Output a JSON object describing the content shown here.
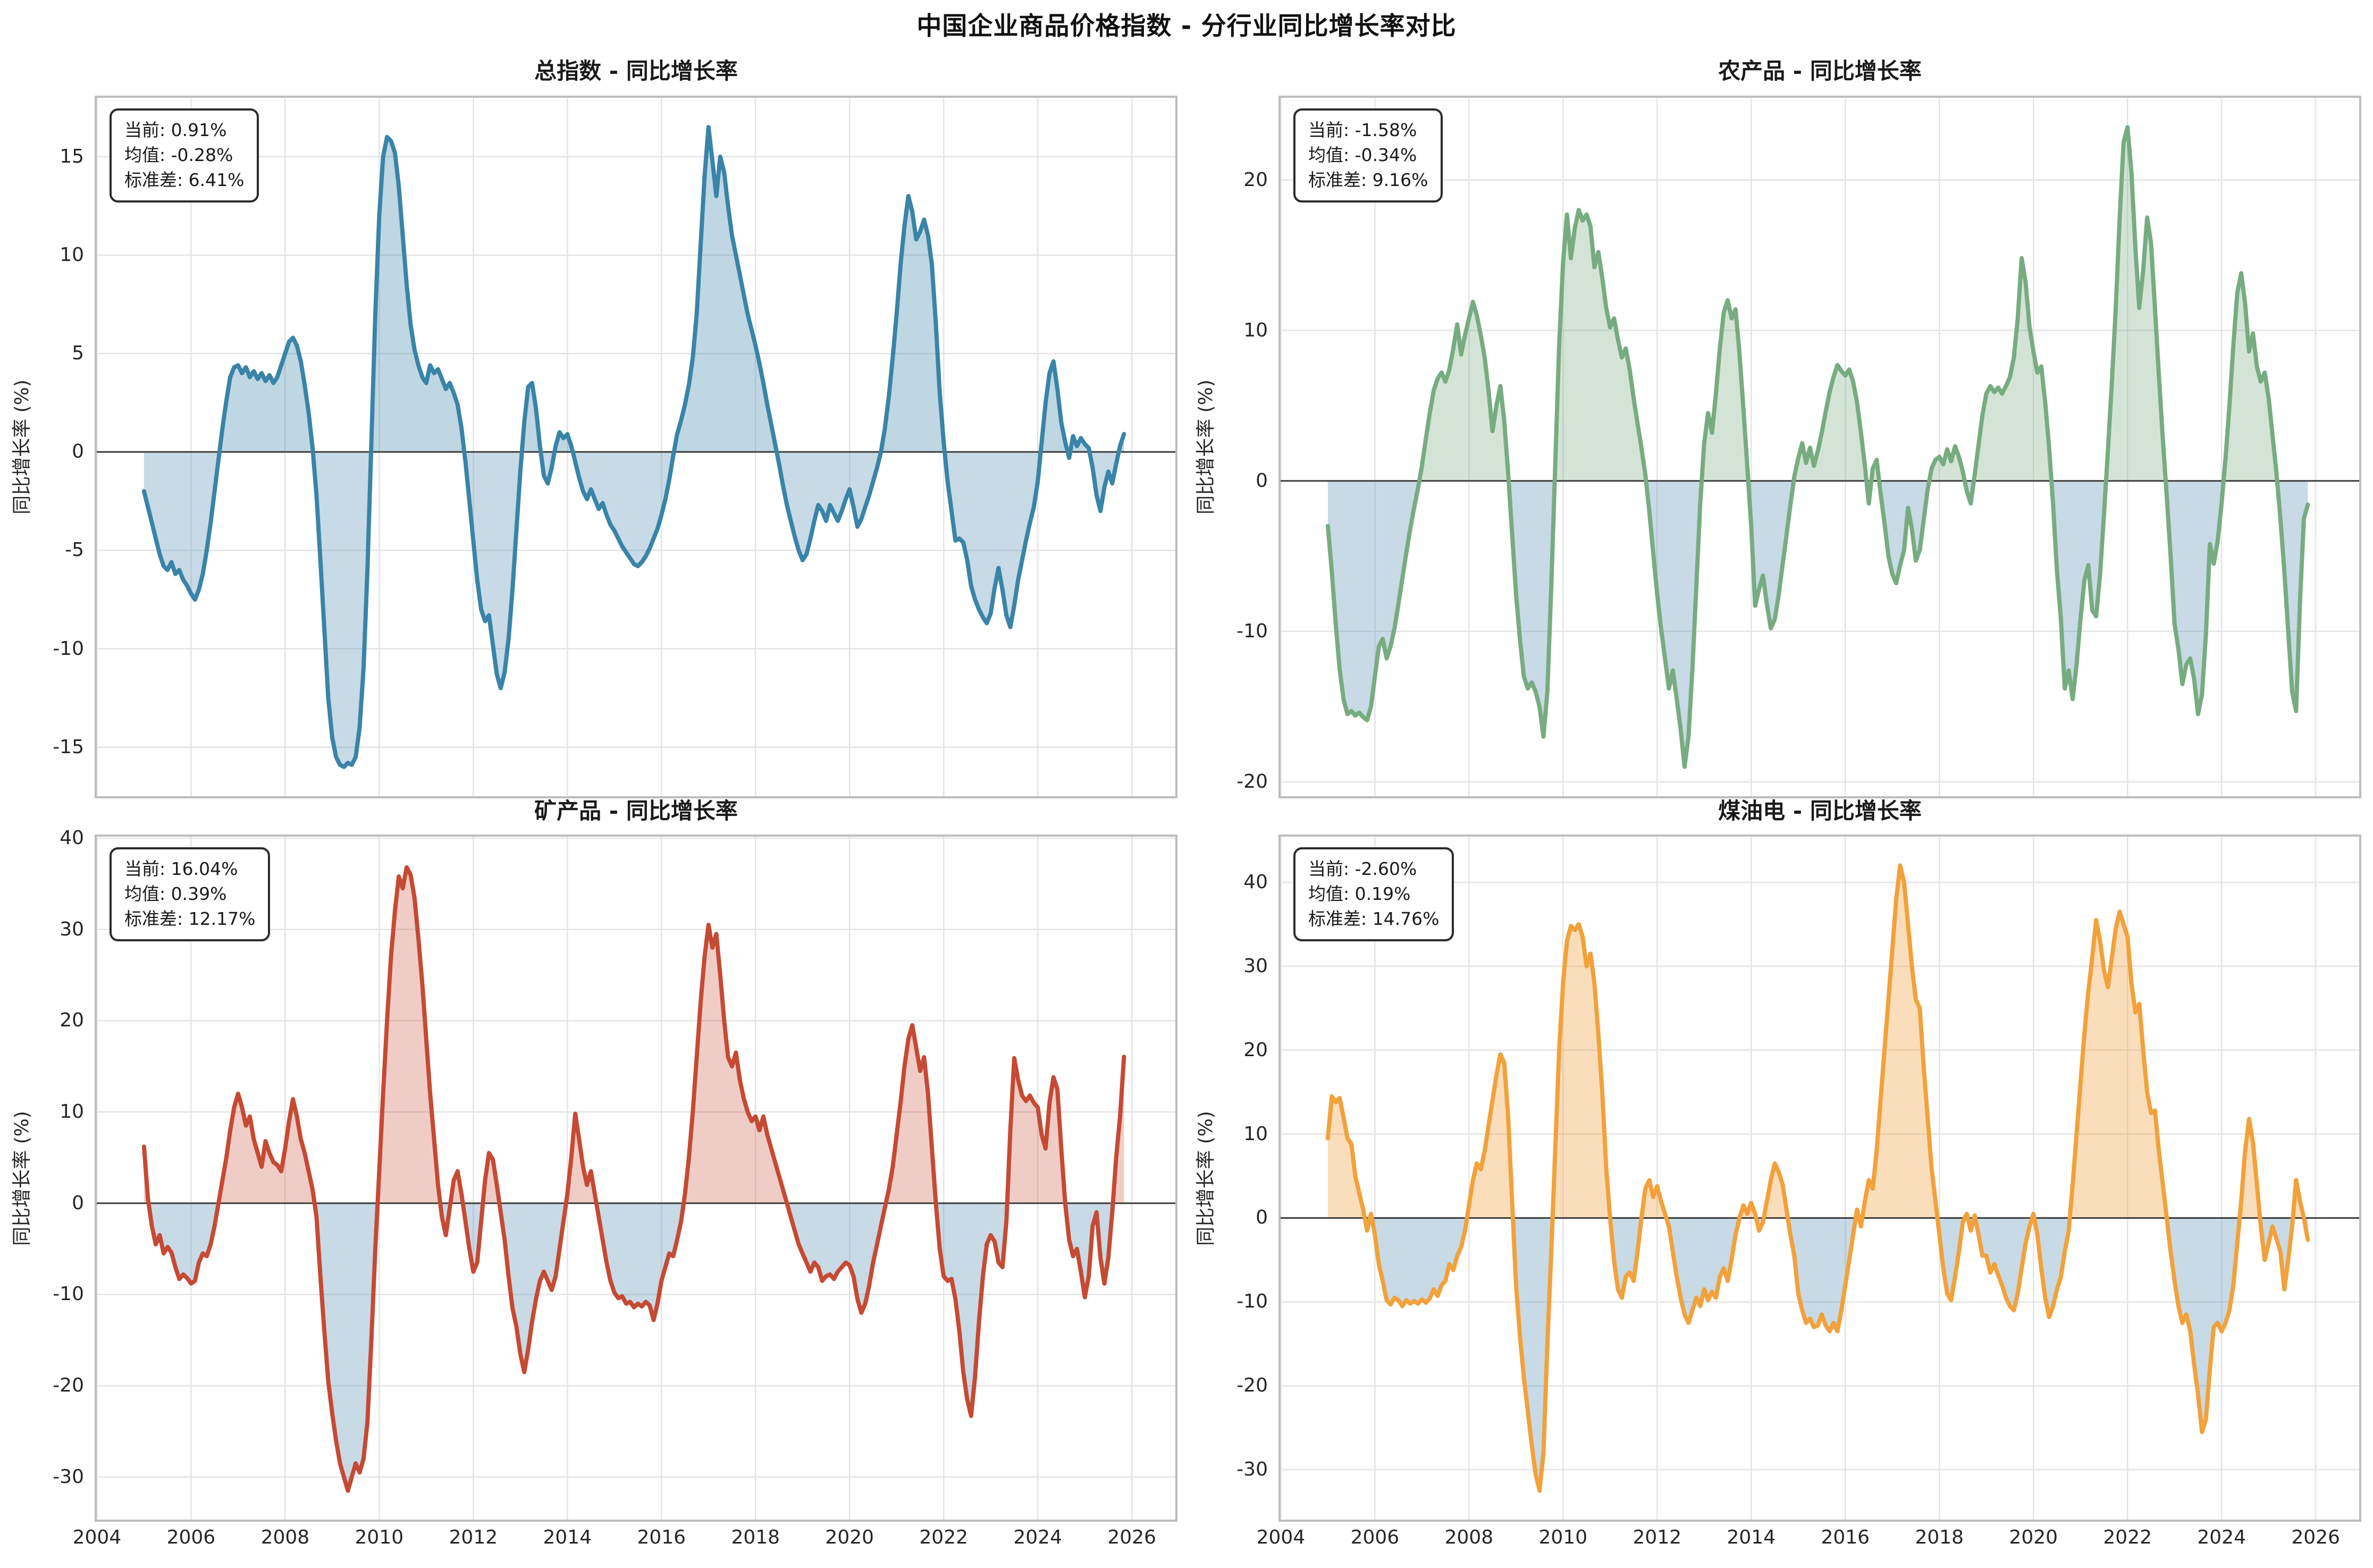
{
  "figure_title": "中国企业商品价格指数 - 分行业同比增长率对比",
  "colors": {
    "negative_fill": "rgba(108,158,188,0.38)",
    "grid": "#e4e4e4",
    "zero_line": "#3d3d3d",
    "plot_border": "#bdbdbd",
    "text": "#262626",
    "title": "#111111"
  },
  "chart_data": [
    {
      "type": "line",
      "title": "总指数 - 同比增长率",
      "ylabel": "同比增长率 (%)",
      "stats": {
        "current": "当前: 0.91%",
        "mean": "均值: -0.28%",
        "std": "标准差: 6.41%"
      },
      "line_color": "#3984a8",
      "fill_color": "rgba(57,132,168,0.32)",
      "x_start_year": 2005.0,
      "x_interval": "monthly",
      "x_range": [
        2003.95,
        2026.97
      ],
      "x_ticks": [
        2004,
        2006,
        2008,
        2010,
        2012,
        2014,
        2016,
        2018,
        2020,
        2022,
        2024,
        2026
      ],
      "y_range": [
        -17.6,
        18.1
      ],
      "y_ticks": [
        15,
        10,
        5,
        0,
        -5,
        -10,
        -15
      ],
      "grid": true,
      "values": [
        -2.0,
        -2.8,
        -3.6,
        -4.4,
        -5.2,
        -5.8,
        -6.0,
        -5.6,
        -6.2,
        -6.0,
        -6.5,
        -6.8,
        -7.2,
        -7.5,
        -7.0,
        -6.2,
        -5.0,
        -3.6,
        -2.0,
        -0.4,
        1.2,
        2.6,
        3.8,
        4.3,
        4.4,
        4.0,
        4.3,
        3.8,
        4.1,
        3.7,
        4.0,
        3.6,
        3.9,
        3.5,
        3.8,
        4.4,
        5.0,
        5.6,
        5.8,
        5.4,
        4.6,
        3.4,
        2.0,
        0.2,
        -2.2,
        -5.5,
        -9.0,
        -12.5,
        -14.5,
        -15.5,
        -15.9,
        -16.0,
        -15.8,
        -15.9,
        -15.5,
        -14.0,
        -11.0,
        -6.0,
        0.5,
        7.0,
        12.0,
        15.0,
        16.0,
        15.8,
        15.2,
        13.5,
        11.0,
        8.5,
        6.5,
        5.2,
        4.4,
        3.8,
        3.5,
        4.4,
        4.0,
        4.2,
        3.7,
        3.2,
        3.5,
        3.0,
        2.4,
        1.2,
        -0.5,
        -2.5,
        -4.5,
        -6.5,
        -8.0,
        -8.6,
        -8.3,
        -9.8,
        -11.3,
        -12.0,
        -11.2,
        -9.5,
        -7.0,
        -4.0,
        -1.0,
        1.5,
        3.3,
        3.5,
        2.2,
        0.3,
        -1.2,
        -1.6,
        -0.8,
        0.3,
        1.0,
        0.7,
        0.9,
        0.3,
        -0.5,
        -1.3,
        -2.0,
        -2.4,
        -1.9,
        -2.4,
        -2.9,
        -2.6,
        -3.2,
        -3.7,
        -4.0,
        -4.4,
        -4.8,
        -5.1,
        -5.4,
        -5.7,
        -5.8,
        -5.6,
        -5.3,
        -4.9,
        -4.4,
        -3.9,
        -3.2,
        -2.4,
        -1.4,
        -0.2,
        0.9,
        1.6,
        2.4,
        3.4,
        4.8,
        7.0,
        10.5,
        14.0,
        16.5,
        14.8,
        13.0,
        15.0,
        14.2,
        12.5,
        11.0,
        10.0,
        9.0,
        8.0,
        7.0,
        6.2,
        5.4,
        4.5,
        3.5,
        2.4,
        1.4,
        0.4,
        -0.6,
        -1.7,
        -2.7,
        -3.5,
        -4.3,
        -5.0,
        -5.5,
        -5.2,
        -4.4,
        -3.5,
        -2.7,
        -3.0,
        -3.5,
        -2.7,
        -3.1,
        -3.5,
        -3.0,
        -2.4,
        -1.9,
        -2.8,
        -3.8,
        -3.4,
        -2.8,
        -2.2,
        -1.5,
        -0.8,
        0.0,
        1.2,
        2.8,
        4.8,
        7.0,
        9.5,
        11.5,
        13.0,
        12.2,
        10.8,
        11.2,
        11.8,
        11.0,
        9.5,
        6.5,
        3.0,
        0.5,
        -1.5,
        -3.0,
        -4.5,
        -4.4,
        -4.6,
        -5.5,
        -6.8,
        -7.5,
        -8.0,
        -8.4,
        -8.7,
        -8.2,
        -6.9,
        -5.9,
        -7.0,
        -8.3,
        -8.9,
        -7.8,
        -6.5,
        -5.5,
        -4.5,
        -3.6,
        -2.8,
        -1.5,
        0.5,
        2.5,
        4.0,
        4.6,
        3.2,
        1.5,
        0.5,
        -0.3,
        0.8,
        0.3,
        0.7,
        0.4,
        0.2,
        -0.8,
        -2.2,
        -3.0,
        -1.8,
        -1.0,
        -1.6,
        -0.6,
        0.3,
        0.91
      ]
    },
    {
      "type": "line",
      "title": "农产品 - 同比增长率",
      "ylabel": "同比增长率 (%)",
      "stats": {
        "current": "当前: -1.58%",
        "mean": "均值: -0.34%",
        "std": "标准差: 9.16%"
      },
      "line_color": "#77ac80",
      "fill_color": "rgba(119,172,128,0.32)",
      "x_start_year": 2005.0,
      "x_interval": "monthly",
      "x_range": [
        2003.95,
        2026.97
      ],
      "x_ticks": [
        2004,
        2006,
        2008,
        2010,
        2012,
        2014,
        2016,
        2018,
        2020,
        2022,
        2024,
        2026
      ],
      "y_range": [
        -21.1,
        25.6
      ],
      "y_ticks": [
        20,
        10,
        0,
        -10,
        -20
      ],
      "grid": true,
      "values": [
        -3.0,
        -6.0,
        -9.5,
        -12.5,
        -14.5,
        -15.5,
        -15.3,
        -15.6,
        -15.4,
        -15.7,
        -15.9,
        -15.0,
        -13.0,
        -11.0,
        -10.5,
        -11.8,
        -11.0,
        -9.8,
        -8.2,
        -6.5,
        -4.8,
        -3.2,
        -1.8,
        -0.5,
        1.0,
        2.8,
        4.5,
        6.0,
        6.8,
        7.2,
        6.6,
        7.4,
        8.8,
        10.4,
        8.4,
        9.7,
        10.8,
        11.9,
        11.0,
        9.7,
        8.2,
        6.0,
        3.3,
        5.0,
        6.3,
        4.0,
        0.5,
        -3.5,
        -7.5,
        -10.5,
        -13.0,
        -13.8,
        -13.4,
        -14.0,
        -15.0,
        -17.0,
        -14.0,
        -7.0,
        1.0,
        9.0,
        14.5,
        17.7,
        14.8,
        16.8,
        18.0,
        17.3,
        17.7,
        16.9,
        14.2,
        15.2,
        13.5,
        11.5,
        10.2,
        10.8,
        9.4,
        8.2,
        8.8,
        7.4,
        5.5,
        3.8,
        2.2,
        0.4,
        -2.0,
        -4.8,
        -7.5,
        -9.8,
        -11.8,
        -13.8,
        -12.6,
        -14.5,
        -16.5,
        -19.0,
        -17.0,
        -12.5,
        -7.0,
        -1.5,
        2.5,
        4.5,
        3.2,
        5.8,
        8.8,
        11.2,
        12.0,
        10.8,
        11.4,
        8.5,
        4.8,
        1.0,
        -3.0,
        -8.3,
        -7.2,
        -6.3,
        -8.2,
        -9.8,
        -9.2,
        -7.6,
        -5.6,
        -3.6,
        -1.6,
        0.3,
        1.5,
        2.5,
        1.2,
        2.2,
        1.0,
        2.0,
        3.2,
        4.6,
        5.9,
        6.9,
        7.7,
        7.3,
        7.0,
        7.4,
        6.6,
        5.2,
        3.2,
        1.0,
        -1.5,
        0.8,
        1.4,
        -0.8,
        -2.8,
        -5.0,
        -6.2,
        -6.8,
        -5.6,
        -4.6,
        -1.8,
        -3.2,
        -5.3,
        -4.6,
        -2.6,
        -0.6,
        0.8,
        1.4,
        1.6,
        1.1,
        2.1,
        1.3,
        2.3,
        1.6,
        0.6,
        -0.7,
        -1.5,
        0.4,
        2.4,
        4.4,
        5.8,
        6.3,
        5.9,
        6.2,
        5.8,
        6.3,
        6.9,
        8.2,
        10.8,
        14.8,
        13.2,
        10.2,
        8.6,
        7.2,
        7.6,
        5.2,
        2.2,
        -1.5,
        -6.0,
        -9.2,
        -13.8,
        -12.6,
        -14.5,
        -12.2,
        -9.2,
        -6.6,
        -5.6,
        -8.6,
        -9.0,
        -6.2,
        -2.2,
        2.0,
        6.5,
        11.5,
        17.5,
        22.5,
        23.5,
        20.5,
        15.5,
        11.5,
        14.0,
        17.5,
        15.8,
        11.5,
        7.0,
        2.8,
        -1.0,
        -5.0,
        -9.5,
        -11.2,
        -13.5,
        -12.2,
        -11.8,
        -13.2,
        -15.5,
        -14.2,
        -10.2,
        -4.2,
        -5.5,
        -4.0,
        -1.5,
        1.5,
        5.0,
        9.0,
        12.5,
        13.8,
        11.8,
        8.6,
        9.8,
        7.6,
        6.6,
        7.2,
        5.5,
        3.0,
        0.5,
        -2.5,
        -6.0,
        -10.0,
        -14.0,
        -15.3,
        -8.0,
        -2.5,
        -1.58
      ]
    },
    {
      "type": "line",
      "title": "矿产品 - 同比增长率",
      "ylabel": "同比增长率 (%)",
      "stats": {
        "current": "当前: 16.04%",
        "mean": "均值: 0.39%",
        "std": "标准差: 12.17%"
      },
      "line_color": "#c64a33",
      "fill_color": "rgba(198,74,51,0.28)",
      "x_start_year": 2005.0,
      "x_interval": "monthly",
      "x_range": [
        2003.95,
        2026.97
      ],
      "x_ticks": [
        2004,
        2006,
        2008,
        2010,
        2012,
        2014,
        2016,
        2018,
        2020,
        2022,
        2024,
        2026
      ],
      "y_range": [
        -34.9,
        40.4
      ],
      "y_ticks": [
        40,
        30,
        20,
        10,
        0,
        -10,
        -20,
        -30
      ],
      "grid": true,
      "values": [
        6.2,
        0.5,
        -2.5,
        -4.5,
        -3.5,
        -5.5,
        -4.8,
        -5.4,
        -7.0,
        -8.3,
        -7.8,
        -8.2,
        -8.8,
        -8.5,
        -6.5,
        -5.5,
        -5.8,
        -4.5,
        -2.5,
        0.0,
        2.5,
        5.0,
        8.0,
        10.5,
        12.0,
        10.5,
        8.5,
        9.5,
        7.0,
        5.5,
        4.0,
        6.8,
        5.5,
        4.5,
        4.2,
        3.5,
        6.0,
        9.0,
        11.4,
        9.5,
        7.0,
        5.5,
        3.5,
        1.5,
        -1.5,
        -8.0,
        -14.0,
        -19.5,
        -23.0,
        -26.0,
        -28.5,
        -30.0,
        -31.5,
        -30.0,
        -28.5,
        -29.5,
        -28.0,
        -24.0,
        -15.0,
        -5.0,
        3.5,
        12.0,
        20.0,
        27.0,
        32.0,
        35.8,
        34.5,
        36.8,
        36.0,
        33.5,
        29.0,
        24.0,
        18.0,
        12.0,
        7.0,
        2.0,
        -1.5,
        -3.5,
        -0.5,
        2.5,
        3.5,
        1.0,
        -2.0,
        -5.0,
        -7.5,
        -6.5,
        -2.0,
        2.5,
        5.5,
        4.8,
        2.0,
        -1.0,
        -4.0,
        -8.0,
        -11.5,
        -13.5,
        -16.5,
        -18.5,
        -16.0,
        -13.0,
        -10.5,
        -8.5,
        -7.5,
        -8.5,
        -9.5,
        -8.0,
        -5.0,
        -2.0,
        1.0,
        5.0,
        9.8,
        7.0,
        4.0,
        2.0,
        3.5,
        1.0,
        -1.5,
        -4.0,
        -6.5,
        -8.5,
        -9.8,
        -10.4,
        -10.2,
        -11.0,
        -10.8,
        -11.4,
        -11.0,
        -11.3,
        -10.8,
        -11.2,
        -12.8,
        -11.0,
        -8.5,
        -7.0,
        -5.5,
        -5.8,
        -4.0,
        -2.0,
        1.0,
        5.0,
        10.0,
        16.0,
        22.0,
        27.0,
        30.5,
        28.0,
        29.5,
        25.0,
        20.0,
        16.0,
        15.0,
        16.5,
        13.5,
        11.5,
        10.0,
        9.0,
        9.5,
        8.0,
        9.5,
        7.5,
        6.0,
        4.5,
        3.0,
        1.5,
        0.0,
        -1.5,
        -3.0,
        -4.5,
        -5.5,
        -6.5,
        -7.5,
        -6.5,
        -7.0,
        -8.5,
        -8.0,
        -7.8,
        -8.3,
        -7.5,
        -7.0,
        -6.5,
        -6.8,
        -8.0,
        -10.5,
        -12.0,
        -11.0,
        -9.0,
        -6.5,
        -4.5,
        -2.5,
        -0.5,
        1.5,
        4.0,
        7.5,
        11.0,
        15.0,
        18.0,
        19.5,
        17.0,
        14.5,
        16.0,
        12.0,
        6.0,
        0.0,
        -5.0,
        -8.0,
        -8.5,
        -8.3,
        -10.5,
        -14.0,
        -18.5,
        -21.5,
        -23.3,
        -19.0,
        -13.0,
        -8.0,
        -4.5,
        -3.5,
        -4.2,
        -6.5,
        -7.0,
        -2.0,
        8.0,
        15.9,
        13.5,
        11.8,
        11.2,
        11.8,
        11.0,
        10.5,
        7.5,
        6.0,
        11.0,
        13.8,
        12.5,
        6.0,
        0.0,
        -4.0,
        -5.8,
        -5.0,
        -7.5,
        -10.3,
        -8.0,
        -2.5,
        -1.0,
        -6.0,
        -8.8,
        -6.0,
        -1.0,
        5.0,
        9.5,
        16.04
      ]
    },
    {
      "type": "line",
      "title": "煤油电 - 同比增长率",
      "ylabel": "同比增长率 (%)",
      "stats": {
        "current": "当前: -2.60%",
        "mean": "均值: 0.19%",
        "std": "标准差: 14.76%"
      },
      "line_color": "#f2a13b",
      "fill_color": "rgba(242,161,59,0.35)",
      "x_start_year": 2005.0,
      "x_interval": "monthly",
      "x_range": [
        2003.95,
        2026.97
      ],
      "x_ticks": [
        2004,
        2006,
        2008,
        2010,
        2012,
        2014,
        2016,
        2018,
        2020,
        2022,
        2024,
        2026
      ],
      "y_range": [
        -36.2,
        45.7
      ],
      "y_ticks": [
        40,
        30,
        20,
        10,
        0,
        -10,
        -20,
        -30
      ],
      "grid": true,
      "values": [
        9.5,
        14.5,
        13.8,
        14.3,
        12.0,
        9.5,
        8.8,
        5.0,
        3.0,
        1.0,
        -1.5,
        0.5,
        -2.0,
        -5.5,
        -7.5,
        -9.8,
        -10.3,
        -9.5,
        -9.8,
        -10.5,
        -9.8,
        -10.2,
        -9.9,
        -10.2,
        -9.7,
        -10.1,
        -9.6,
        -8.5,
        -9.3,
        -8.0,
        -7.5,
        -5.5,
        -6.2,
        -4.5,
        -3.5,
        -1.5,
        1.5,
        4.5,
        6.5,
        5.8,
        8.0,
        11.0,
        14.0,
        17.0,
        19.5,
        18.5,
        12.0,
        2.0,
        -8.0,
        -14.0,
        -19.0,
        -23.0,
        -27.0,
        -30.5,
        -32.5,
        -28.0,
        -15.0,
        -4.0,
        8.0,
        20.0,
        28.0,
        33.0,
        34.8,
        34.3,
        35.0,
        33.5,
        30.0,
        31.5,
        28.0,
        22.0,
        15.0,
        6.0,
        0.0,
        -5.0,
        -8.5,
        -9.5,
        -7.0,
        -6.5,
        -7.5,
        -4.0,
        0.0,
        3.5,
        4.5,
        2.5,
        3.8,
        2.0,
        0.5,
        -1.0,
        -4.0,
        -7.0,
        -9.5,
        -11.5,
        -12.5,
        -11.0,
        -9.5,
        -10.5,
        -8.5,
        -9.8,
        -8.8,
        -9.5,
        -7.0,
        -6.0,
        -7.5,
        -5.0,
        -2.0,
        0.0,
        1.5,
        0.5,
        1.8,
        0.5,
        -1.5,
        -0.5,
        2.0,
        4.5,
        6.5,
        5.5,
        4.0,
        1.0,
        -2.0,
        -4.5,
        -9.0,
        -11.0,
        -12.5,
        -12.0,
        -13.0,
        -12.8,
        -11.5,
        -12.8,
        -13.5,
        -12.5,
        -13.5,
        -11.0,
        -8.0,
        -5.0,
        -2.0,
        1.0,
        -1.0,
        2.0,
        4.5,
        3.5,
        8.0,
        14.0,
        20.0,
        26.0,
        32.0,
        38.0,
        42.0,
        40.0,
        35.0,
        30.0,
        26.0,
        25.0,
        18.0,
        12.0,
        6.0,
        2.0,
        -2.0,
        -6.0,
        -9.0,
        -9.8,
        -7.0,
        -4.0,
        -0.5,
        0.5,
        -1.5,
        0.3,
        -2.0,
        -4.5,
        -4.5,
        -6.5,
        -5.5,
        -6.8,
        -8.0,
        -9.5,
        -10.5,
        -11.0,
        -9.0,
        -6.0,
        -3.0,
        -1.0,
        0.5,
        -2.0,
        -6.0,
        -9.5,
        -11.8,
        -10.5,
        -8.5,
        -7.0,
        -4.0,
        -1.5,
        4.0,
        10.0,
        16.0,
        22.0,
        27.0,
        31.0,
        35.5,
        33.0,
        29.5,
        27.5,
        31.0,
        34.5,
        36.5,
        35.0,
        33.5,
        28.0,
        24.5,
        25.5,
        20.0,
        15.0,
        12.5,
        12.8,
        8.0,
        4.0,
        0.0,
        -4.0,
        -7.5,
        -10.5,
        -12.5,
        -11.5,
        -13.5,
        -17.5,
        -21.0,
        -25.5,
        -24.0,
        -18.0,
        -13.0,
        -12.5,
        -13.5,
        -12.5,
        -11.0,
        -8.0,
        -3.0,
        2.0,
        8.0,
        11.8,
        9.0,
        4.0,
        -1.0,
        -5.0,
        -3.0,
        -1.0,
        -2.5,
        -4.0,
        -8.5,
        -5.0,
        -1.0,
        4.5,
        2.0,
        0.0,
        -2.6
      ]
    }
  ]
}
